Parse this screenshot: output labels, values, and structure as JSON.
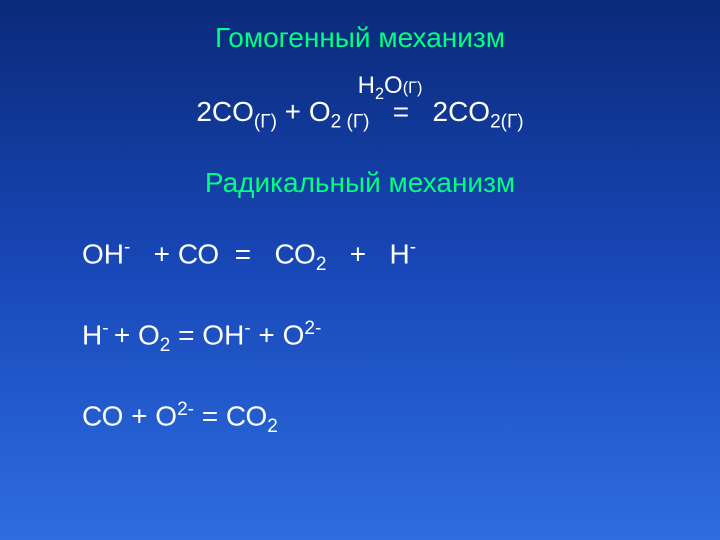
{
  "slide": {
    "background_gradient": [
      "#0a2a7a",
      "#1848b8",
      "#2e6de0"
    ],
    "heading_color": "#00ff7f",
    "text_color": "#ffffff",
    "title1": "Гомогенный механизм",
    "catalyst": {
      "prefix": "H",
      "sub1": "2",
      "mid": "O",
      "state": "(Г)"
    },
    "equation1": {
      "t1": "2CO",
      "s1": "(Г)",
      "t2": " + O",
      "s2": "2 (Г)",
      "t3": "   =   2CO",
      "s3": "2(Г)"
    },
    "title2": "Радикальный механизм",
    "equation2": {
      "t1": "ОН",
      "sup1": "-",
      "t2": "   + СО  =   СО",
      "sub1": "2",
      "t3": "   +   Н",
      "sup2": "-"
    },
    "equation3": {
      "t1": "Н",
      "sup1": "- ",
      "t2": "+ О",
      "sub1": "2",
      "t3": " = ОН",
      "sup2": "-",
      "t4": " + О",
      "sup3": "2-"
    },
    "equation4": {
      "t1": "СО + О",
      "sup1": "2-",
      "t2": " = СО",
      "sub1": "2"
    },
    "font_family": "Arial, sans-serif",
    "base_fontsize_pt": 21
  }
}
